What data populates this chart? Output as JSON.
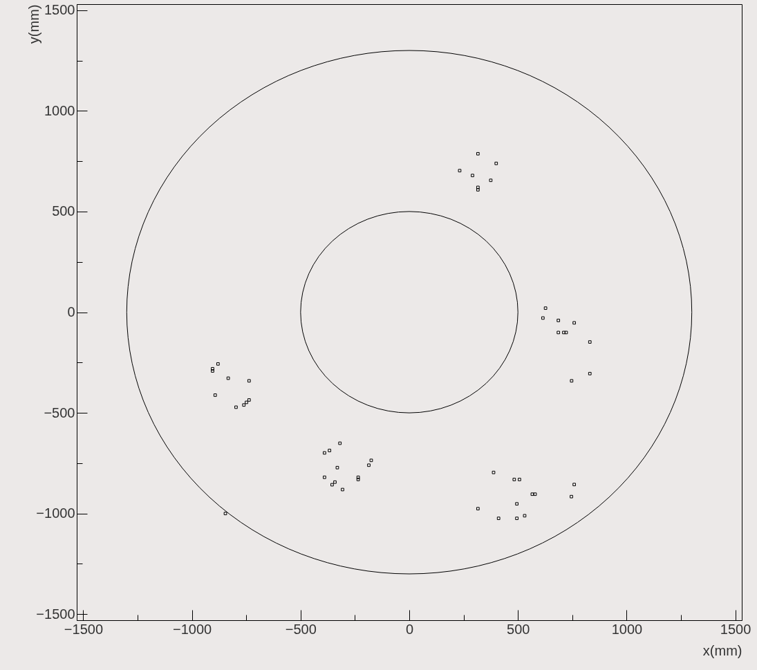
{
  "chart_data": {
    "type": "scatter",
    "xlabel": "x(mm)",
    "ylabel": "y(mm)",
    "xlim": [
      -1530,
      1530
    ],
    "ylim": [
      -1530,
      1530
    ],
    "xticks": [
      -1500,
      {
        "value": -1250,
        "label": null
      },
      -1000,
      {
        "value": -750,
        "label": null
      },
      -500,
      {
        "value": -250,
        "label": null
      },
      0,
      {
        "value": 250,
        "label": null
      },
      500,
      {
        "value": 750,
        "label": null
      },
      1000,
      {
        "value": 1250,
        "label": null
      },
      1500
    ],
    "yticks": [
      -1500,
      {
        "value": -1250,
        "label": null
      },
      -1000,
      {
        "value": -750,
        "label": null
      },
      -500,
      {
        "value": -250,
        "label": null
      },
      0,
      {
        "value": 250,
        "label": null
      },
      500,
      {
        "value": 750,
        "label": null
      },
      1000,
      {
        "value": 1250,
        "label": null
      },
      1500
    ],
    "grid": false,
    "series": [
      {
        "type": "scatter",
        "color": "#000000",
        "marker": "square",
        "x": [
          316,
          400,
          232,
          291,
          375,
          316,
          316,
          627,
          615,
          686,
          759,
          686,
          711,
          722,
          831,
          831,
          747,
          -880,
          -905,
          -905,
          -833,
          -737,
          -893,
          -737,
          -749,
          -761,
          -797,
          -846,
          -319,
          -367,
          -390,
          -175,
          -186,
          -331,
          -390,
          -235,
          -235,
          -342,
          -355,
          -307,
          388,
          483,
          507,
          759,
          566,
          579,
          746,
          495,
          316,
          531,
          411,
          495
        ],
        "values": [
          787,
          739,
          703,
          679,
          655,
          620,
          608,
          20,
          -29,
          -41,
          -53,
          -101,
          -101,
          -101,
          -148,
          -305,
          -341,
          -257,
          -281,
          -292,
          -328,
          -341,
          -412,
          -436,
          -448,
          -461,
          -472,
          -1000,
          -651,
          -687,
          -699,
          -736,
          -760,
          -772,
          -820,
          -820,
          -831,
          -844,
          -857,
          -881,
          -796,
          -831,
          -831,
          -856,
          -904,
          -904,
          -916,
          -952,
          -976,
          -1011,
          -1024,
          -1024
        ]
      }
    ]
  }
}
